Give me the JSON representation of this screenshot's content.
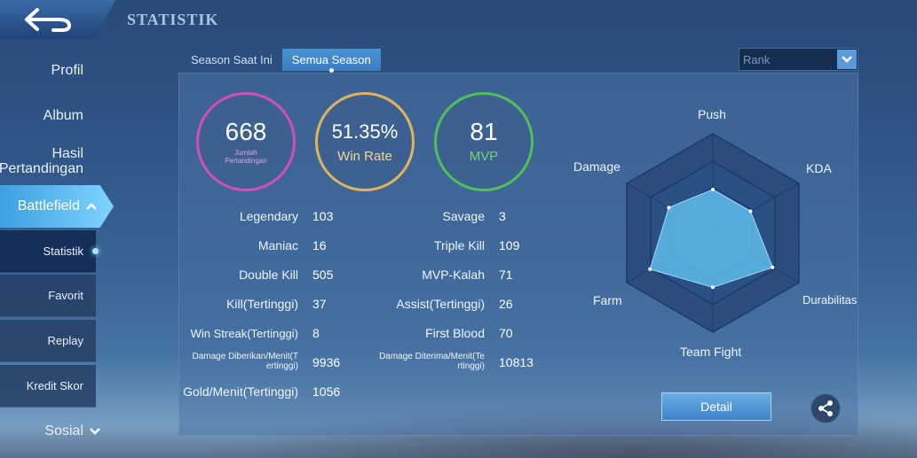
{
  "header": {
    "title": "STATISTIK"
  },
  "sidebar": {
    "items": [
      {
        "label": "Profil"
      },
      {
        "label": "Album"
      },
      {
        "label_line1": "Hasil",
        "label_line2": "Pertandingan"
      },
      {
        "label": "Battlefield"
      },
      {
        "label": "Sosial"
      }
    ],
    "sub_items": [
      {
        "label": "Statistik"
      },
      {
        "label": "Favorit"
      },
      {
        "label": "Replay"
      },
      {
        "label": "Kredit Skor"
      }
    ]
  },
  "tabs": [
    {
      "label": "Season Saat Ini"
    },
    {
      "label": "Semua Season"
    }
  ],
  "filter": {
    "selected": "Rank"
  },
  "summary": {
    "matches": {
      "value": "668",
      "label_line1": "Jumlah",
      "label_line2": "Pertandingan",
      "color": "#d24fb8"
    },
    "win_rate": {
      "value": "51.35%",
      "label": "Win Rate",
      "color": "#e0b45a"
    },
    "mvp": {
      "value": "81",
      "label": "MVP",
      "color": "#4fc05a"
    }
  },
  "stats_left": [
    {
      "label": "Legendary",
      "value": "103"
    },
    {
      "label": "Maniac",
      "value": "16"
    },
    {
      "label": "Double Kill",
      "value": "505"
    },
    {
      "label": "Kill(Tertinggi)",
      "value": "37"
    },
    {
      "label": "Win Streak(Tertinggi)",
      "value": "8"
    },
    {
      "label_line1": "Damage Diberikan/Menit(T",
      "label_line2": "ertinggi)",
      "value": "9936"
    },
    {
      "label": "Gold/Menit(Tertinggi)",
      "value": "1056"
    }
  ],
  "stats_right": [
    {
      "label": "Savage",
      "value": "3"
    },
    {
      "label": "Triple Kill",
      "value": "109"
    },
    {
      "label": "MVP-Kalah",
      "value": "71"
    },
    {
      "label": "Assist(Tertinggi)",
      "value": "26"
    },
    {
      "label": "First Blood",
      "value": "70"
    },
    {
      "label_line1": "Damage Diterima/Menit(Te",
      "label_line2": "rtinggi)",
      "value": "10813"
    }
  ],
  "radar": {
    "axes": [
      "Push",
      "KDA",
      "Durabilitas",
      "Team Fight",
      "Farm",
      "Damage"
    ],
    "values": [
      0.6,
      0.6,
      0.95,
      0.75,
      1.0,
      0.7
    ],
    "fill_color": "#5cb4e6"
  },
  "actions": {
    "detail_label": "Detail",
    "share_icon": "share-icon"
  }
}
